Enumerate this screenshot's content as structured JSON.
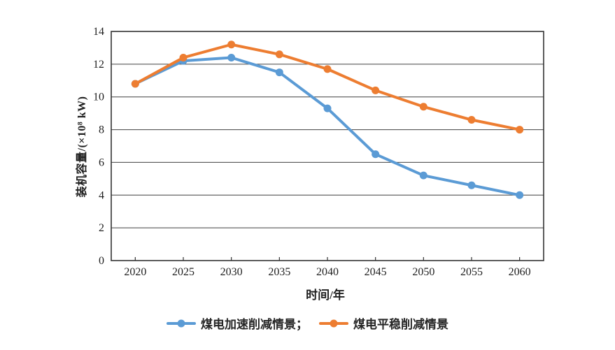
{
  "chart_data": {
    "type": "line",
    "title": "",
    "xlabel": "时间/年",
    "ylabel": "装机容量/(×10⁸ kW)",
    "categories": [
      "2020",
      "2025",
      "2030",
      "2035",
      "2040",
      "2045",
      "2050",
      "2055",
      "2060"
    ],
    "yticks": [
      0,
      2,
      4,
      6,
      8,
      10,
      12,
      14
    ],
    "ylim": [
      0,
      14
    ],
    "grid": "horizontal",
    "legend_position": "bottom-center",
    "axis_color": "#333333",
    "gridline_color": "#404040",
    "series": [
      {
        "name": "煤电加速削减情景",
        "legend_label": "煤电加速削减情景；",
        "color": "#5B9BD5",
        "values": [
          10.8,
          12.2,
          12.4,
          11.5,
          9.3,
          6.5,
          5.2,
          4.6,
          4.0
        ]
      },
      {
        "name": "煤电平稳削减情景",
        "legend_label": "煤电平稳削减情景",
        "color": "#ED7D31",
        "values": [
          10.8,
          12.4,
          13.2,
          12.6,
          11.7,
          10.4,
          9.4,
          8.6,
          8.0
        ]
      }
    ]
  }
}
